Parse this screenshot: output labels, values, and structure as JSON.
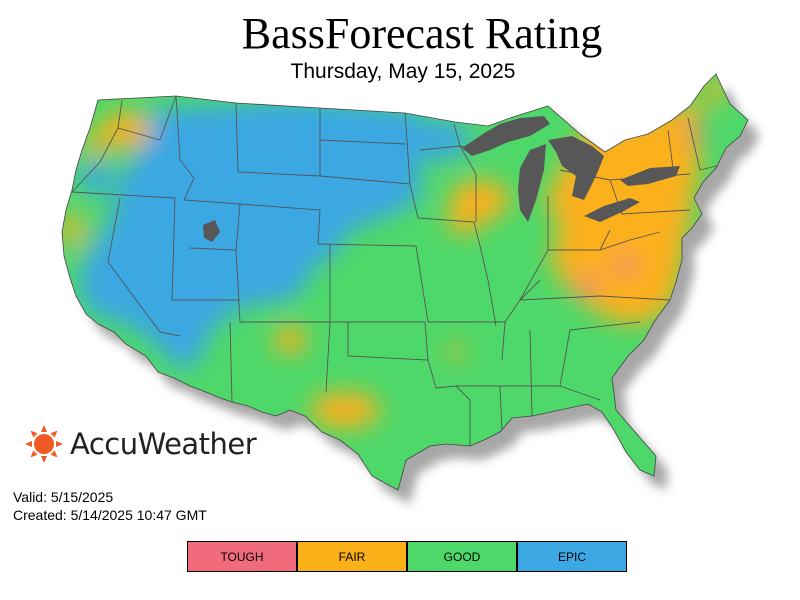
{
  "map": {
    "title": "BassForecast Rating",
    "date": "Thursday, May 15, 2025",
    "brand": "AccuWeather",
    "valid": "Valid: 5/15/2025",
    "created": "Created: 5/14/2025 10:47 GMT",
    "legend": [
      {
        "label": "TOUGH",
        "color": "#f06b7b"
      },
      {
        "label": "FAIR",
        "color": "#fbb01a"
      },
      {
        "label": "GOOD",
        "color": "#4ed86a"
      },
      {
        "label": "EPIC",
        "color": "#3ba7e3"
      }
    ],
    "water_color": "#575757",
    "brand_color": "#ee5a24"
  }
}
